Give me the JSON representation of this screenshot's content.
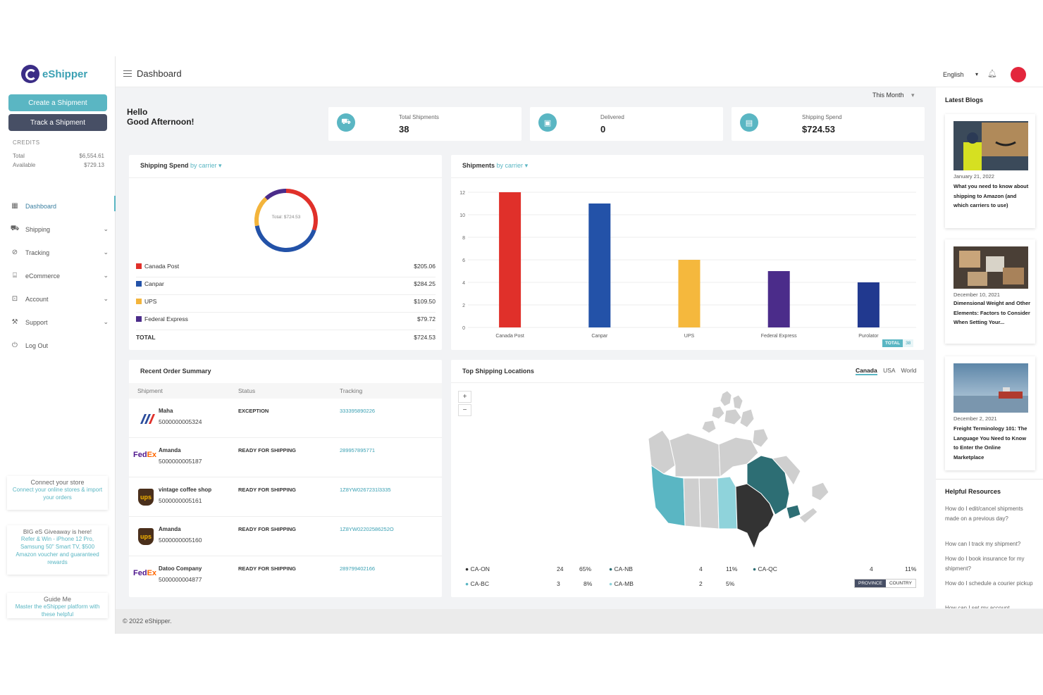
{
  "brand": {
    "name": "eShipper"
  },
  "sidebar": {
    "create_label": "Create a Shipment",
    "track_label": "Track a Shipment",
    "credits": {
      "title": "CREDITS",
      "total_label": "Total",
      "total_value": "$6,554.61",
      "available_label": "Available",
      "available_value": "$729.13"
    },
    "items": [
      {
        "label": "Dashboard",
        "icon": "dashboard-icon"
      },
      {
        "label": "Shipping",
        "icon": "truck-icon"
      },
      {
        "label": "Tracking",
        "icon": "compass-icon"
      },
      {
        "label": "eCommerce",
        "icon": "store-icon"
      },
      {
        "label": "Account",
        "icon": "account-icon"
      },
      {
        "label": "Support",
        "icon": "wrench-icon"
      },
      {
        "label": "Log Out",
        "icon": "power-icon"
      }
    ],
    "promos": [
      {
        "title": "Connect your store",
        "text": "Connect your online stores & import your orders"
      },
      {
        "title": "BIG eS Giveaway is here!",
        "text": "Refer & Win - iPhone 12 Pro, Samsung 50\" Smart TV, $500 Amazon voucher and guaranteed rewards"
      },
      {
        "title": "Guide Me",
        "text": "Master the eShipper platform with these helpful"
      }
    ]
  },
  "header": {
    "title": "Dashboard",
    "language": "English"
  },
  "filter": {
    "period": "This Month"
  },
  "greeting": {
    "line1": "Hello",
    "line2": "Good Afternoon!"
  },
  "stats": [
    {
      "label": "Total Shipments",
      "value": "38",
      "icon": "truck-icon"
    },
    {
      "label": "Delivered",
      "value": "0",
      "icon": "box-icon"
    },
    {
      "label": "Shipping Spend",
      "value": "$724.53",
      "icon": "receipt-icon"
    }
  ],
  "spend": {
    "title": "Shipping Spend",
    "by": "by carrier",
    "center_label": "Total: $724.53",
    "rows": [
      {
        "name": "Canada Post",
        "value": "$205.06",
        "color": "#e0302a"
      },
      {
        "name": "Canpar",
        "value": "$284.25",
        "color": "#2352a8"
      },
      {
        "name": "UPS",
        "value": "$109.50",
        "color": "#f3b43b"
      },
      {
        "name": "Federal Express",
        "value": "$79.72",
        "color": "#4b2c8a"
      }
    ],
    "total_label": "TOTAL",
    "total_value": "$724.53"
  },
  "chart_data": {
    "type": "bar",
    "title": "Shipments",
    "subtitle": "by carrier",
    "categories": [
      "Canada Post",
      "Canpar",
      "UPS",
      "Federal Express",
      "Purolator"
    ],
    "values": [
      12,
      11,
      6,
      5,
      4
    ],
    "colors": [
      "#e0302a",
      "#2352a8",
      "#f5b83d",
      "#4b2c8a",
      "#21398f"
    ],
    "yticks": [
      "0",
      "2",
      "4",
      "6",
      "8",
      "10",
      "12"
    ],
    "ylim": [
      0,
      12
    ],
    "total_label": "TOTAL",
    "total_value": "38"
  },
  "orders": {
    "title": "Recent Order Summary",
    "columns": [
      "Shipment",
      "Status",
      "Tracking"
    ],
    "rows": [
      {
        "carrier": "canpar",
        "name": "Maha",
        "id": "5000000005324",
        "status": "EXCEPTION",
        "tracking": "333395890226"
      },
      {
        "carrier": "fedex",
        "name": "Amanda",
        "id": "5000000005187",
        "status": "READY FOR SHIPPING",
        "tracking": "289957895771"
      },
      {
        "carrier": "ups",
        "name": "vintage coffee shop",
        "id": "5000000005161",
        "status": "READY FOR SHIPPING",
        "tracking": "1Z8YW0267231l3335"
      },
      {
        "carrier": "ups",
        "name": "Amanda",
        "id": "5000000005160",
        "status": "READY FOR SHIPPING",
        "tracking": "1Z8YW02202586252O"
      },
      {
        "carrier": "fedex",
        "name": "Datoo Company",
        "id": "5000000004877",
        "status": "READY FOR SHIPPING",
        "tracking": "289799402166"
      }
    ]
  },
  "locations": {
    "title": "Top Shipping Locations",
    "tabs": [
      "Canada",
      "USA",
      "World"
    ],
    "items": [
      {
        "code": "CA-ON",
        "count": "24",
        "pct": "65%",
        "color": "#333333"
      },
      {
        "code": "CA-NB",
        "count": "4",
        "pct": "11%",
        "color": "#2d6e74"
      },
      {
        "code": "CA-QC",
        "count": "4",
        "pct": "11%",
        "color": "#2d6e74"
      },
      {
        "code": "CA-BC",
        "count": "3",
        "pct": "8%",
        "color": "#5ab6c3"
      },
      {
        "code": "CA-MB",
        "count": "2",
        "pct": "5%",
        "color": "#8fd3db"
      }
    ],
    "toggle": [
      "PROVINCE",
      "COUNTRY"
    ]
  },
  "right": {
    "blogs_title": "Latest Blogs",
    "blogs": [
      {
        "date": "January 21, 2022",
        "title": "What you need to know about shipping to Amazon (and which carriers to use)"
      },
      {
        "date": "December 10, 2021",
        "title": "Dimensional Weight and Other Elements: Factors to Consider When Setting Your..."
      },
      {
        "date": "December 2, 2021",
        "title": "Freight Terminology 101: The Language You Need to Know to Enter the Online Marketplace"
      }
    ],
    "resources_title": "Helpful Resources",
    "resources": [
      "How do I edit/cancel shipments made on a previous day?",
      "How can I track my shipment?",
      "How do I book insurance for my shipment?",
      "How do I schedule a courier pickup",
      "How can I set my account"
    ]
  },
  "footer": {
    "text": "© 2022 eShipper."
  }
}
